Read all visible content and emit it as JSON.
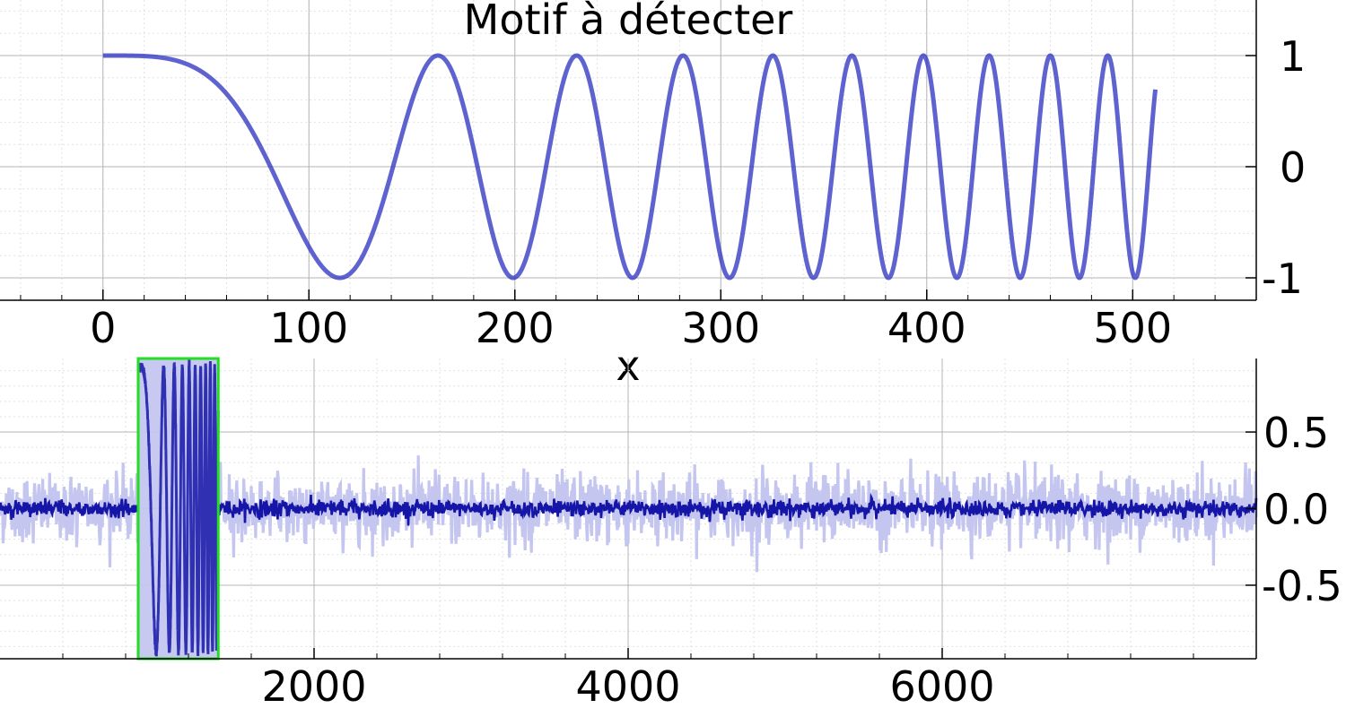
{
  "chart_data": [
    {
      "id": "motif",
      "type": "line",
      "title": "Motif à détecter",
      "xlabel": "x",
      "ylabel": "",
      "xlim": [
        -50,
        560
      ],
      "ylim": [
        -1.22,
        1.5
      ],
      "grid": true,
      "x_ticks": [
        0,
        100,
        200,
        300,
        400,
        500
      ],
      "y_ticks": [
        -1,
        0,
        1
      ],
      "x_tick_labels": [
        "0",
        "100",
        "200",
        "300",
        "400",
        "500"
      ],
      "y_tick_labels": [
        "-1",
        "0",
        "1"
      ],
      "signal": {
        "kind": "chirp",
        "formula": "cos(2*pi*f0/2*(x/N)^2*N)",
        "n_samples": 512,
        "x_start": 0,
        "x_end": 511,
        "y_range": [
          -1,
          1
        ]
      }
    },
    {
      "id": "signal",
      "type": "line",
      "title": "",
      "xlabel": "",
      "ylabel": "",
      "xlim": [
        0,
        8000
      ],
      "ylim": [
        -0.98,
        0.98
      ],
      "grid": true,
      "x_ticks": [
        2000,
        4000,
        6000
      ],
      "y_ticks": [
        0.5,
        0.0,
        -0.5
      ],
      "x_tick_labels": [
        "2000",
        "4000",
        "6000"
      ],
      "y_tick_labels": [
        "0.5",
        "0.0",
        "-0.5"
      ],
      "pattern_start": 880,
      "pattern_end": 1390,
      "detection_box": {
        "x_start": 880,
        "x_end": 1390,
        "y_low": -0.98,
        "y_high": 0.98
      },
      "noise_amplitude_light": 0.2,
      "noise_amplitude_dark": 0.05
    }
  ],
  "colors": {
    "line": "#2a2fbf",
    "line_dark": "#1515a8",
    "noise_light": "#c4c6f0",
    "highlight_fill": "#c4c6f0",
    "detection_box": "#22dd22",
    "grid_major": "#b4b4b4",
    "grid_minor": "#e2e2e2"
  }
}
